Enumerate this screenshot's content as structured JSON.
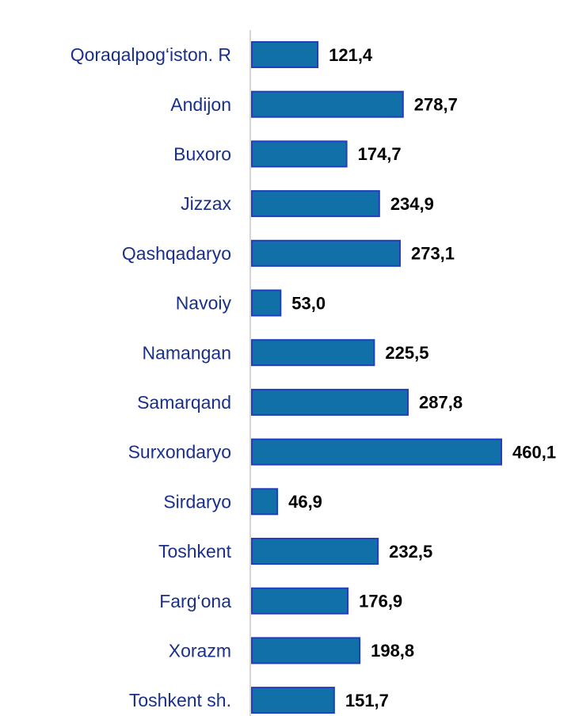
{
  "chart_data": {
    "type": "bar",
    "orientation": "horizontal",
    "categories": [
      "Qoraqalpog‘iston. R",
      "Andijon",
      "Buxoro",
      "Jizzax",
      "Qashqadaryo",
      "Navoiy",
      "Namangan",
      "Samarqand",
      "Surxondaryo",
      "Sirdaryo",
      "Toshkent",
      "Farg‘ona",
      "Xorazm",
      "Toshkent sh."
    ],
    "values": [
      121.4,
      278.7,
      174.7,
      234.9,
      273.1,
      53.0,
      225.5,
      287.8,
      460.1,
      46.9,
      232.5,
      176.9,
      198.8,
      151.7
    ],
    "value_labels": [
      "121,4",
      "278,7",
      "174,7",
      "234,9",
      "273,1",
      "53,0",
      "225,5",
      "287,8",
      "460,1",
      "46,9",
      "232,5",
      "176,9",
      "198,8",
      "151,7"
    ],
    "color": "#1170a8"
  }
}
